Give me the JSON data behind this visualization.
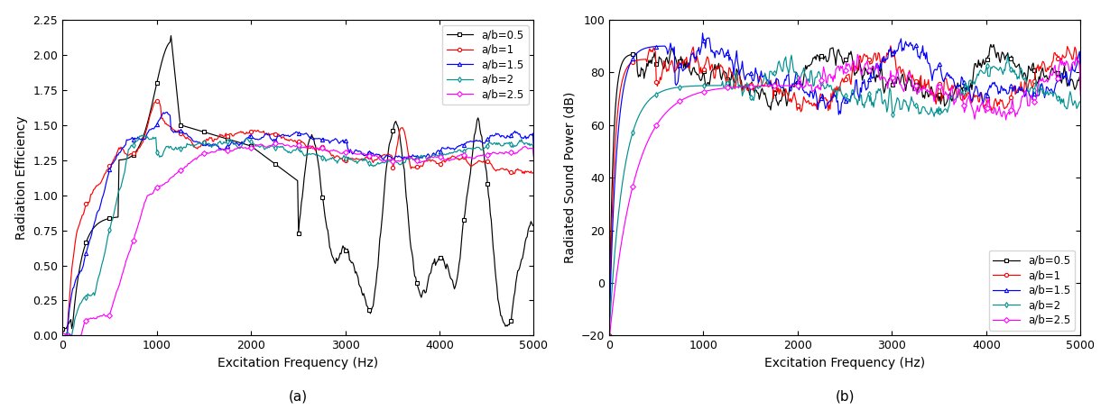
{
  "colors": {
    "ab05": "#000000",
    "ab1": "#ff0000",
    "ab15": "#0000ff",
    "ab2": "#009090",
    "ab25": "#ff00ff"
  },
  "legend_labels": [
    "a/b=0.5",
    "a/b=1",
    "a/b=1.5",
    "a/b=2",
    "a/b=2.5"
  ],
  "markers": [
    "s",
    "o",
    "^",
    "d",
    "D"
  ],
  "xlabel": "Excitation Frequency (Hz)",
  "ylabel_a": "Radiation Efficiency",
  "ylabel_b": "Radiated Sound Power (dB)",
  "label_a": "(a)",
  "label_b": "(b)",
  "xlim": [
    0,
    5000
  ],
  "ylim_a": [
    0.0,
    2.25
  ],
  "ylim_b": [
    -20,
    100
  ],
  "yticks_a": [
    0.0,
    0.25,
    0.5,
    0.75,
    1.0,
    1.25,
    1.5,
    1.75,
    2.0,
    2.25
  ],
  "yticks_b": [
    -20,
    0,
    20,
    40,
    60,
    80,
    100
  ],
  "xticks": [
    0,
    1000,
    2000,
    3000,
    4000,
    5000
  ]
}
